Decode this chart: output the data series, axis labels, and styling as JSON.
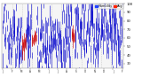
{
  "background_color": "#ffffff",
  "plot_bg_color": "#f5f5f5",
  "ylim": [
    25,
    100
  ],
  "ytick_vals": [
    30,
    40,
    50,
    60,
    70,
    80,
    90,
    100
  ],
  "num_points": 365,
  "seed": 17,
  "blue_color": "#0000cc",
  "red_color": "#cc0000",
  "grid_color": "#bbbbbb",
  "legend_color_blue": "#2244ff",
  "legend_color_red": "#ff2200",
  "bar_width": 0.5
}
